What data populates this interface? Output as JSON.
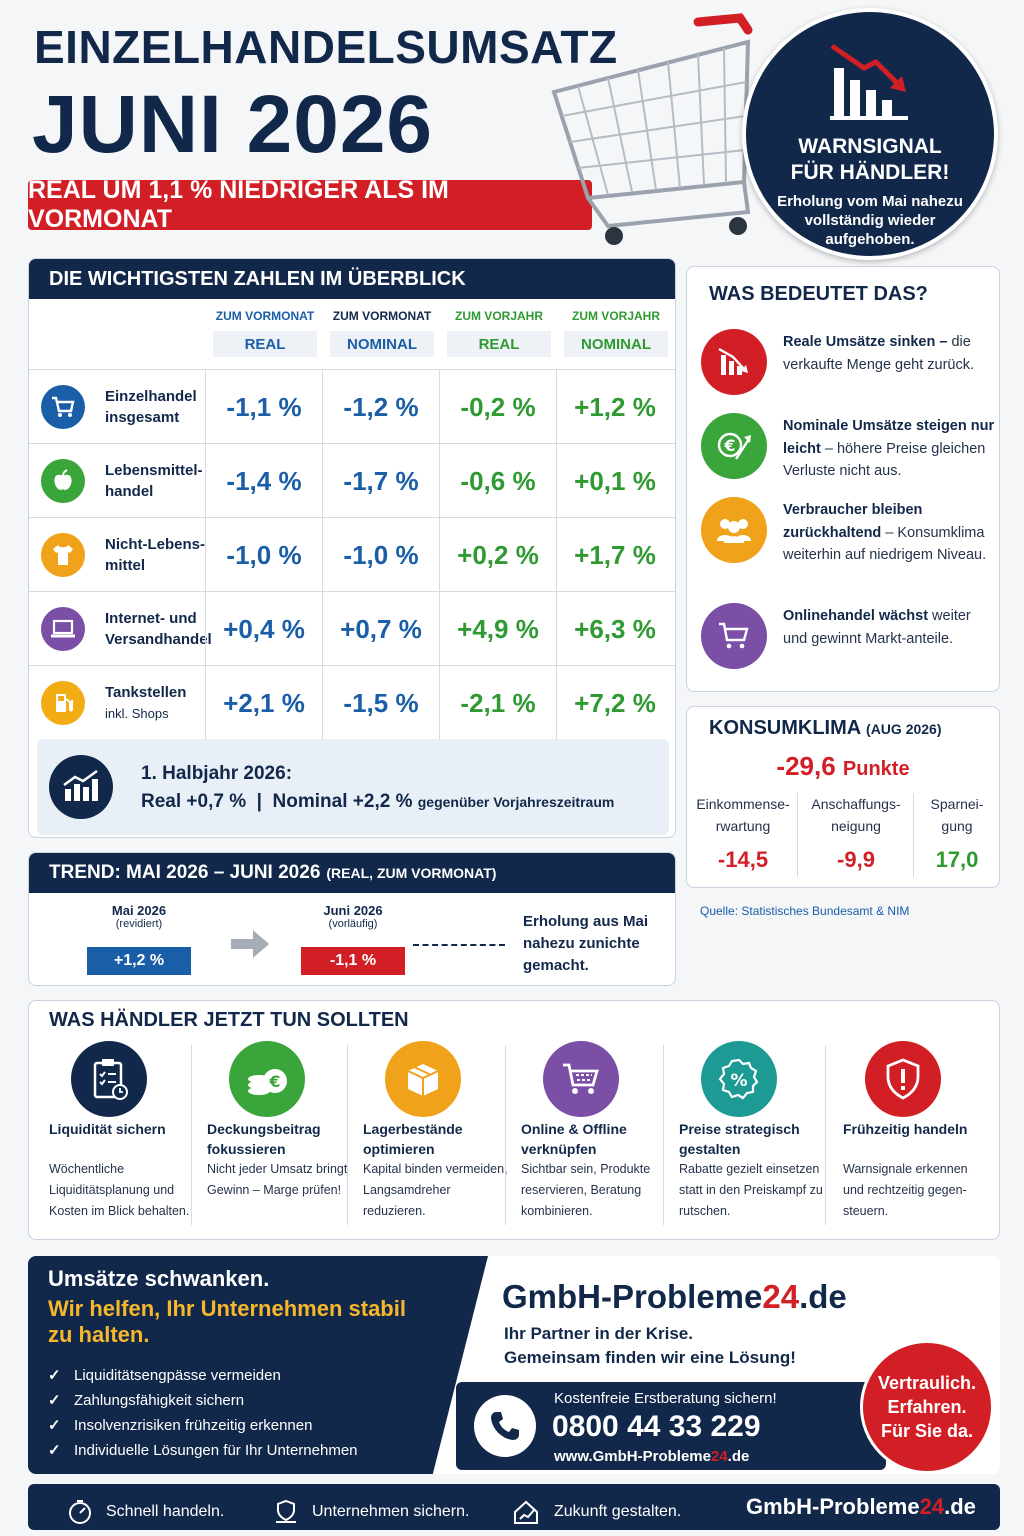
{
  "header": {
    "title_line1": "EINZELHANDELSUMSATZ",
    "title_line2": "JUNI 2026",
    "subtitle": "REAL UM 1,1 % NIEDRIGER ALS IM VORMONAT"
  },
  "warning": {
    "title_line1": "WARNSIGNAL",
    "title_line2": "FÜR HÄNDLER!",
    "text": "Erholung vom Mai nahezu vollständig wieder aufgehoben."
  },
  "overview": {
    "title": "DIE WICHTIGSTEN ZAHLEN IM ÜBERBLICK",
    "columns": [
      {
        "top": "ZUM VORMONAT",
        "sub": "REAL"
      },
      {
        "top": "ZUM VORMONAT",
        "sub": "NOMINAL"
      },
      {
        "top": "ZUM VORJAHR",
        "sub": "REAL"
      },
      {
        "top": "ZUM VORJAHR",
        "sub": "NOMINAL"
      }
    ],
    "rows": [
      {
        "icon": "shopping-cart-icon",
        "label": "Einzelhandel insgesamt",
        "sublabel": "",
        "values": [
          "-1,1 %",
          "-1,2 %",
          "-0,2 %",
          "+1,2 %"
        ]
      },
      {
        "icon": "apple-icon",
        "label": "Lebensmittel-handel",
        "sublabel": "",
        "values": [
          "-1,4 %",
          "-1,7 %",
          "-0,6 %",
          "+0,1 %"
        ]
      },
      {
        "icon": "tshirt-icon",
        "label": "Nicht-Lebens-mittel",
        "sublabel": "",
        "values": [
          "-1,0 %",
          "-1,0 %",
          "+0,2 %",
          "+1,7 %"
        ]
      },
      {
        "icon": "laptop-icon",
        "label": "Internet- und Versandhandel",
        "sublabel": "",
        "values": [
          "+0,4 %",
          "+0,7 %",
          "+4,9 %",
          "+6,3 %"
        ]
      },
      {
        "icon": "fuel-pump-icon",
        "label": "Tankstellen",
        "sublabel": "inkl. Shops",
        "values": [
          "+2,1 %",
          "-1,5 %",
          "-2,1 %",
          "+7,2 %"
        ]
      }
    ],
    "half_year": {
      "title": "1. Halbjahr 2026:",
      "real": "Real +0,7 %",
      "sep": "|",
      "nominal": "Nominal +2,2 %",
      "suffix": "gegenüber Vorjahreszeitraum"
    }
  },
  "meaning": {
    "title": "WAS BEDEUTET DAS?",
    "items": [
      {
        "icon": "declining-chart-icon",
        "bold": "Reale Umsätze sinken –",
        "text": " die verkaufte Menge geht zurück."
      },
      {
        "icon": "euro-growth-icon",
        "bold": "Nominale Umsätze steigen nur leicht",
        "text": " – höhere Preise gleichen Verluste nicht aus."
      },
      {
        "icon": "people-icon",
        "bold": "Verbraucher bleiben zurückhaltend",
        "text": " – Konsumklima weiterhin auf niedrigem Niveau."
      },
      {
        "icon": "online-cart-icon",
        "bold": "Onlinehandel wächst",
        "text": " weiter und gewinnt Markt-anteile."
      }
    ]
  },
  "klima": {
    "title": "KONSUMKLIMA",
    "period": "(AUG 2026)",
    "value": "-29,6",
    "unit": "Punkte",
    "components": [
      {
        "label1": "Einkommense-",
        "label2": "rwartung",
        "value": "-14,5"
      },
      {
        "label1": "Anschaffungs-",
        "label2": "neigung",
        "value": "-9,9"
      },
      {
        "label1": "Sparnei-",
        "label2": "gung",
        "value": "17,0"
      }
    ],
    "source": "Quelle: Statistisches Bundesamt & NIM"
  },
  "trend": {
    "title": "TREND: MAI 2026 – JUNI 2026",
    "title_suffix": "(REAL, ZUM VORMONAT)",
    "may": {
      "label": "Mai 2026",
      "note": "(revidiert)",
      "value": "+1,2 %"
    },
    "june": {
      "label": "Juni 2026",
      "note": "(vorläufig)",
      "value": "-1,1 %"
    },
    "comment": "Erholung aus Mai nahezu zunichte gemacht."
  },
  "actions": {
    "title": "WAS HÄNDLER JETZT TUN SOLLTEN",
    "items": [
      {
        "icon": "clipboard-icon",
        "title": "Liquidität sichern",
        "desc": "Wöchentliche Liquiditätsplanung und Kosten im Blick behalten."
      },
      {
        "icon": "coins-euro-icon",
        "title": "Deckungsbeitrag fokussieren",
        "desc": "Nicht jeder Umsatz bringt Gewinn – Marge prüfen!"
      },
      {
        "icon": "box-icon",
        "title": "Lagerbestände optimieren",
        "desc": "Kapital binden vermeiden, Langsamdreher reduzieren."
      },
      {
        "icon": "cart-icon",
        "title": "Online & Offline verknüpfen",
        "desc": "Sichtbar sein, Produkte reservieren, Beratung kombinieren."
      },
      {
        "icon": "percent-badge-icon",
        "title": "Preise strategisch gestalten",
        "desc": "Rabatte gezielt einsetzen statt in den Preiskampf zu rutschen."
      },
      {
        "icon": "shield-alert-icon",
        "title": "Frühzeitig handeln",
        "desc": "Warnsignale erkennen und rechtzeitig gegen-steuern."
      }
    ]
  },
  "promo": {
    "headline": "Umsätze schwanken.",
    "headline2": "Wir helfen, Ihr Unternehmen stabil zu halten.",
    "checks": [
      "Liquiditätsengpässe vermeiden",
      "Zahlungsfähigkeit sichern",
      "Insolvenzrisiken frühzeitig erkennen",
      "Individuelle Lösungen für Ihr Unternehmen"
    ],
    "brand_a": "GmbH-Probleme",
    "brand_b": "24",
    "brand_c": ".de",
    "tagline1": "Ihr Partner in der Krise.",
    "tagline2": "Gemeinsam finden wir eine Lösung!",
    "cta": "Kostenfreie Erstberatung sichern!",
    "phone": "0800 44 33 229",
    "url_a": "www.GmbH-Probleme",
    "url_b": "24",
    "url_c": ".de",
    "seal": [
      "Vertraulich.",
      "Erfahren.",
      "Für Sie da."
    ]
  },
  "footer": {
    "items": [
      "Schnell handeln.",
      "Unternehmen sichern.",
      "Zukunft gestalten."
    ],
    "brand_a": "GmbH-Probleme",
    "brand_b": "24",
    "brand_c": ".de"
  },
  "colors": {
    "navy": "#12284a",
    "red": "#d21f26",
    "blue": "#1a5ea8",
    "green": "#2f9a32",
    "orange": "#f0a21a",
    "purple": "#7b4fa6",
    "teal": "#1e9a95"
  }
}
